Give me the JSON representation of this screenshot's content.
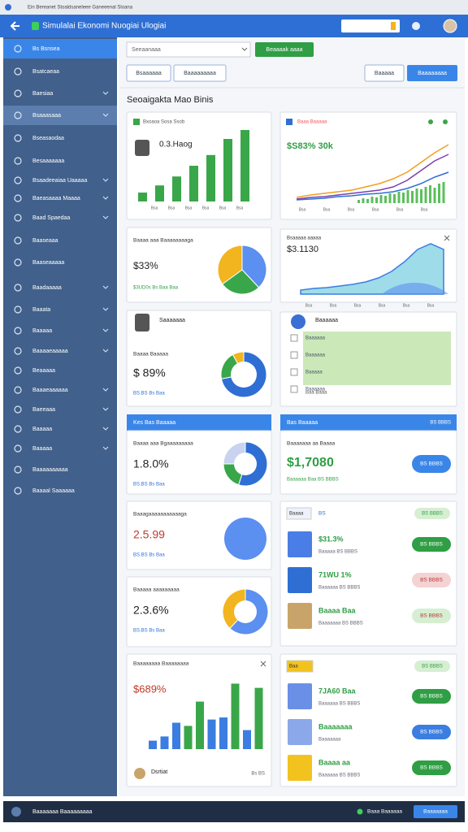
{
  "browser_title": "Ein Bereanet Stoaldsaneleee Ganeeenal Sloana",
  "header": {
    "title": "Simulalai Ekonomi Nuogiai Ulogiai"
  },
  "sidebar": [
    "Bs Bsnsea",
    "Bsatcaeaa",
    "Baesiaa",
    "Bsaaasaaa",
    "Bseasaodaa",
    "Besaaaaaaa",
    "Bsaadeeaiaa Uaaaaa",
    "Baeasaaaa Maaaa",
    "Baad Spaedaa",
    "Baaseaaa",
    "Baaseaaaaa",
    "Baadaaaaa",
    "Baaata",
    "Baaaaa",
    "Baaaaeaaaaa",
    "Beaaaaa",
    "Baaaeaaaaaa",
    "Baeeaaa",
    "Baaaaa",
    "Baaaaa",
    "Baaaaaaaaaa",
    "Baaaal Saaaaaa"
  ],
  "toolbar": {
    "select": "Seeaanaaa",
    "button": "Beaaaak aaaa",
    "filters": [
      "Bsaaaaaa",
      "Baaaaaaaaa"
    ],
    "actions": [
      "Baaaaa",
      "Baaaaaaaa"
    ]
  },
  "section_title": "Seoaigakta Mao Binis",
  "l1": {
    "title": "Bxoaoa Sosa Ssob",
    "value": "0.3.Haog",
    "bars": [
      10,
      18,
      28,
      40,
      52,
      70,
      80
    ],
    "labels": [
      "Bsa",
      "Bsa",
      "Bsa",
      "Bsa",
      "Bsa",
      "Bsa"
    ]
  },
  "r1": {
    "title": "Baaa Baaaaa",
    "value": "$S83% 30k",
    "series": [
      {
        "color": "#f0a020",
        "values": [
          5,
          8,
          10,
          12,
          14,
          18,
          22,
          28,
          36,
          48,
          60,
          70
        ]
      },
      {
        "color": "#7b3fb0",
        "values": [
          3,
          5,
          6,
          8,
          10,
          12,
          14,
          18,
          26,
          38,
          50,
          58
        ]
      },
      {
        "color": "#2f6fd4",
        "values": [
          2,
          3,
          4,
          6,
          7,
          9,
          10,
          12,
          16,
          22,
          30,
          36
        ]
      }
    ],
    "bars": [
      4,
      6,
      5,
      8,
      7,
      10,
      9,
      12,
      11,
      14,
      13,
      16,
      15,
      18,
      17,
      20,
      22,
      19,
      24,
      26
    ],
    "labels": [
      "Bsa",
      "Bsa",
      "Bsa",
      "Bsa",
      "Bsa",
      "Bsa"
    ]
  },
  "l2": {
    "title": "Baaaa aaa Baaaaaaaaga",
    "value": "$33%",
    "sub": "$3UD0s Bs Baa Baa",
    "pie": [
      38,
      27,
      35
    ],
    "colors": [
      "#5b8ff0",
      "#3aa64a",
      "#f2b51f"
    ]
  },
  "r2": {
    "title": "Bsaaaaa aaaaa",
    "value": "$3.1130",
    "area": [
      5,
      7,
      8,
      10,
      12,
      15,
      20,
      28,
      40,
      55,
      62,
      55
    ],
    "labels": [
      "Bsa",
      "Bsa",
      "Bsa",
      "Bsa",
      "Bsa",
      "Bsa"
    ]
  },
  "l3": {
    "header": "Saaaaaaa",
    "title": "Baaaa Baaaaa",
    "value": "$ 89%",
    "sub": "BS.BS Bs Baa",
    "pie": [
      72,
      20,
      8
    ],
    "colors": [
      "#2f6fd4",
      "#3aa64a",
      "#f2b51f"
    ]
  },
  "r3": {
    "header": "Baaaaaa",
    "rows": [
      "Baaaaaa",
      "Baaaaaa",
      "Baaaaa",
      "Baaaaaa"
    ],
    "footer": "Baa Baaa"
  },
  "left_section": "Kes Bas Baaaaa",
  "right_section": {
    "title": "Bas Baaaaa",
    "badge": "BS BBBS"
  },
  "l4": {
    "title": "Baaaa aaa Bgaaaaaaaaa",
    "value": "1.8.0%",
    "sub": "BS.BS Bs Baa",
    "pie": [
      55,
      20,
      25
    ],
    "colors": [
      "#2f6fd4",
      "#3aa64a",
      "#c9d3f0"
    ]
  },
  "l5": {
    "title": "Baaagaaaaaaaaaaaga",
    "value": "2.5.99",
    "sub": "BS.BS Bs Baa"
  },
  "l6": {
    "title": "Baaaaa aaaaaaaaa",
    "value": "2.3.6%",
    "sub": "BS.BS Bs Baa",
    "pie": [
      62,
      38
    ],
    "colors": [
      "#5b8ff0",
      "#f2b51f"
    ]
  },
  "l7": {
    "title": "Baaaaaaaa Baaaaaaaa",
    "value": "$689%",
    "bars": [
      8,
      12,
      25,
      22,
      45,
      28,
      30,
      62,
      18,
      58
    ],
    "colors": [
      "#3b7de0",
      "#3b7de0",
      "#3b7de0",
      "#3aa64a",
      "#3aa64a",
      "#3b7de0",
      "#3b7de0",
      "#3aa64a",
      "#3b7de0",
      "#3aa64a"
    ],
    "footer": "Dsrtiat",
    "footer_right": "Bs BS"
  },
  "r4": {
    "title": "Baaaaaaa aa Baaaa",
    "value": "$1,7080",
    "sub": "Baaaaaa Baa BS BBBS",
    "button": "BS BBBS"
  },
  "r5": {
    "header": "Baaaa",
    "tag": "BS",
    "pill": "BS BBBS",
    "items": [
      {
        "value": "$31.3%",
        "sub": "Baaaaa BS BBBS",
        "pill": "BS BBBS",
        "icon": "#4a7ee6",
        "pill_color": "#2f9e44"
      },
      {
        "value": "71WU 1%",
        "sub": "Baaaaaa BS BBBS",
        "pill": "BS BBBS",
        "icon": "#2f6fd4",
        "pill_color": "#f3d3d3"
      },
      {
        "value": "Baaaa Baa",
        "sub": "Baaaaaaa BS BBBS",
        "pill": "BS BBBS",
        "icon": "#c9a46a",
        "pill_color": "#d6efd2"
      }
    ]
  },
  "r6": {
    "header": "Baa",
    "pill": "BS BBBS",
    "items": [
      {
        "value": "7JA60 Baa",
        "sub": "Baaaaaa BS BBBS",
        "pill": "BS BBBS",
        "icon": "#6a8fe6",
        "pill_color": "#2f9e44"
      },
      {
        "value": "Baaaaaaa",
        "sub": "Baaaaaaa",
        "pill": "BS BBBS",
        "icon": "#8aa8ea",
        "pill_color": "#3b7de0"
      },
      {
        "value": "Baaaa aa",
        "sub": "Baaaaaa BS BBBS",
        "pill": "BS BBBS",
        "icon": "#f2c21f",
        "pill_color": "#2f9e44"
      }
    ]
  },
  "footer": {
    "text": "Baaaaaaa Baaaaaaaaa",
    "status": "Baaa Baaaaaa",
    "button": "Baaaaaaa"
  }
}
